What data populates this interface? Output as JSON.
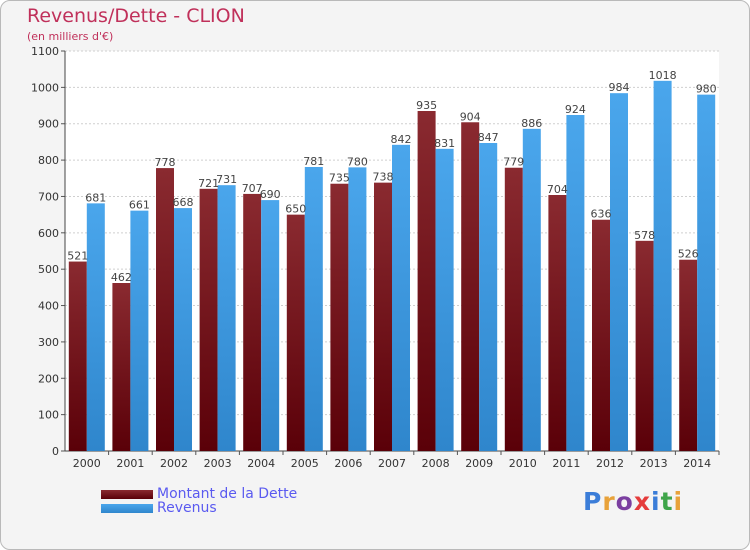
{
  "header": {
    "title": "Revenus/Dette - CLION",
    "subtitle": "(en milliers d'€)"
  },
  "legend": {
    "items": [
      {
        "label": "Montant de la Dette",
        "color": "#6b0f16"
      },
      {
        "label": "Revenus",
        "color": "#3b9ae1"
      }
    ]
  },
  "logo": {
    "text": "Proxiti",
    "letter_colors": [
      "#3b7dd8",
      "#e8a23a",
      "#7b3fa0",
      "#e53b3b",
      "#3b7dd8",
      "#3fa54a",
      "#e8a23a"
    ]
  },
  "chart_data": {
    "type": "bar",
    "categories": [
      "2000",
      "2001",
      "2002",
      "2003",
      "2004",
      "2005",
      "2006",
      "2007",
      "2008",
      "2009",
      "2010",
      "2011",
      "2012",
      "2013",
      "2014"
    ],
    "series": [
      {
        "name": "Montant de la Dette",
        "color": "#6b0f16",
        "values": [
          521,
          462,
          778,
          721,
          707,
          650,
          735,
          738,
          935,
          904,
          779,
          704,
          636,
          578,
          526
        ]
      },
      {
        "name": "Revenus",
        "color": "#3b9ae1",
        "values": [
          681,
          661,
          668,
          731,
          690,
          781,
          780,
          842,
          831,
          847,
          886,
          924,
          984,
          1018,
          980
        ]
      }
    ],
    "ylim": [
      0,
      1100
    ],
    "yticks": [
      0,
      100,
      200,
      300,
      400,
      500,
      600,
      700,
      800,
      900,
      1000,
      1100
    ],
    "grid": true
  }
}
